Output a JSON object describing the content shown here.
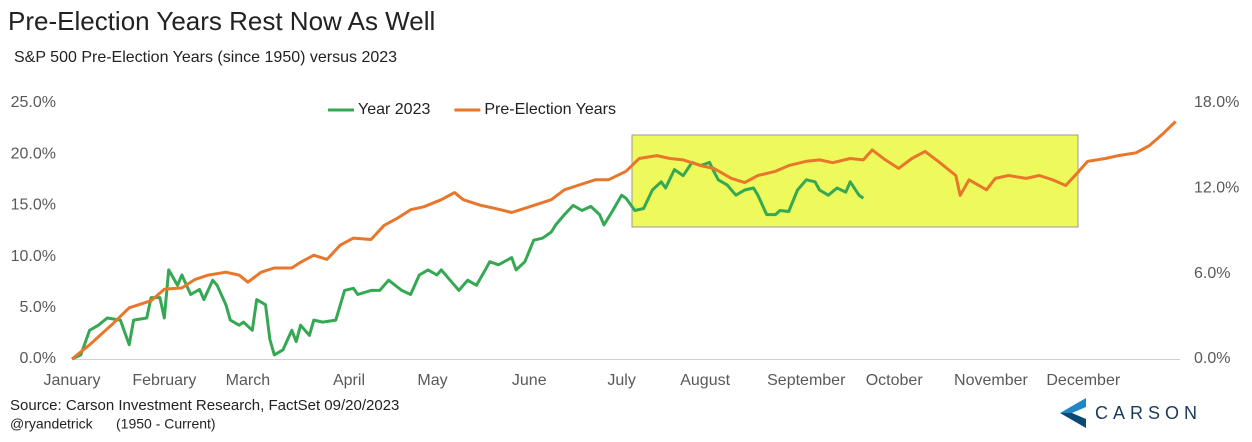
{
  "chart_data": {
    "type": "line",
    "title": "Pre-Election Years Rest Now As Well",
    "subtitle": "S&P 500 Pre-Election Years (since 1950) versus 2023",
    "source": "Source: Carson Investment Research, FactSet 09/20/2023",
    "credit": "@ryandetrick",
    "note": "(1950 - Current)",
    "logo": "CARSON",
    "grid": false,
    "legend": "top",
    "xlim": [
      0,
      252
    ],
    "xticks": [
      {
        "value": 0,
        "label": "January"
      },
      {
        "value": 21,
        "label": "February"
      },
      {
        "value": 40,
        "label": "March"
      },
      {
        "value": 63,
        "label": "April"
      },
      {
        "value": 82,
        "label": "May"
      },
      {
        "value": 104,
        "label": "June"
      },
      {
        "value": 125,
        "label": "July"
      },
      {
        "value": 144,
        "label": "August"
      },
      {
        "value": 167,
        "label": "September"
      },
      {
        "value": 187,
        "label": "October"
      },
      {
        "value": 209,
        "label": "November"
      },
      {
        "value": 230,
        "label": "December"
      }
    ],
    "ylim": [
      0,
      25
    ],
    "yticks": [
      {
        "value": 0,
        "label": "0.0%"
      },
      {
        "value": 5,
        "label": "5.0%"
      },
      {
        "value": 10,
        "label": "10.0%"
      },
      {
        "value": 15,
        "label": "15.0%"
      },
      {
        "value": 20,
        "label": "20.0%"
      },
      {
        "value": 25,
        "label": "25.0%"
      }
    ],
    "y2lim": [
      0,
      18
    ],
    "y2ticks": [
      {
        "value": 0,
        "label": "0.0%"
      },
      {
        "value": 6,
        "label": "6.0%"
      },
      {
        "value": 12,
        "label": "12.0%"
      },
      {
        "value": 18,
        "label": "18.0%"
      }
    ],
    "series": [
      {
        "name": "Year 2023",
        "color": "#35a853",
        "axis": "y",
        "x": [
          0,
          2,
          4,
          6,
          8,
          11,
          13,
          14,
          17,
          18,
          20,
          21,
          22,
          24,
          25,
          27,
          29,
          30,
          32,
          33,
          35,
          36,
          38,
          39,
          41,
          42,
          44,
          45,
          46,
          48,
          50,
          51,
          52,
          54,
          55,
          57,
          60,
          62,
          64,
          65,
          68,
          70,
          72,
          75,
          77,
          79,
          81,
          83,
          84,
          86,
          88,
          90,
          92,
          94,
          95,
          97,
          100,
          101,
          103,
          105,
          107,
          109,
          110,
          112,
          114,
          116,
          118,
          120,
          121,
          123,
          125,
          126,
          128,
          130,
          132,
          134,
          135,
          137,
          139,
          141,
          143,
          145,
          146,
          147,
          149,
          151,
          153,
          155,
          156,
          158,
          160,
          161,
          163,
          165,
          167,
          169,
          170,
          172,
          174,
          176,
          177,
          179,
          180
        ],
        "values": [
          0,
          0.4,
          2.8,
          3.3,
          4.0,
          3.8,
          1.4,
          3.8,
          4.0,
          6.0,
          6.0,
          4.0,
          8.7,
          7.2,
          8.2,
          6.3,
          6.8,
          5.8,
          7.7,
          7.2,
          5.3,
          3.8,
          3.3,
          3.6,
          2.8,
          5.8,
          5.3,
          1.9,
          0.4,
          0.9,
          2.8,
          1.7,
          3.3,
          2.3,
          3.8,
          3.6,
          3.8,
          6.7,
          6.9,
          6.3,
          6.7,
          6.7,
          7.7,
          6.7,
          6.3,
          8.2,
          8.7,
          8.2,
          8.7,
          7.7,
          6.7,
          7.7,
          7.2,
          8.7,
          9.5,
          9.2,
          9.9,
          8.7,
          9.5,
          11.6,
          11.8,
          12.4,
          13.1,
          14.1,
          15.0,
          14.5,
          14.9,
          14.1,
          13.1,
          14.5,
          16.0,
          15.7,
          14.5,
          14.7,
          16.5,
          17.3,
          16.7,
          18.5,
          17.9,
          19.2,
          18.9,
          19.2,
          18.3,
          17.5,
          17.0,
          16.0,
          16.5,
          16.7,
          16.0,
          14.1,
          14.1,
          14.5,
          14.4,
          16.5,
          17.5,
          17.3,
          16.5,
          16.0,
          16.7,
          16.3,
          17.3,
          16.0,
          15.7
        ]
      },
      {
        "name": "Pre-Election Years",
        "color": "#e8762b",
        "axis": "y2",
        "x": [
          0,
          4,
          9,
          13,
          18,
          21,
          25,
          28,
          31,
          35,
          38,
          40,
          43,
          46,
          50,
          52,
          55,
          58,
          61,
          64,
          68,
          71,
          74,
          77,
          80,
          84,
          87,
          89,
          93,
          96,
          100,
          102,
          105,
          109,
          112,
          115,
          119,
          122,
          126,
          129,
          133,
          136,
          139,
          143,
          146,
          150,
          153,
          156,
          160,
          163,
          167,
          170,
          173,
          177,
          180,
          182,
          185,
          188,
          191,
          194,
          197,
          201,
          202,
          204,
          208,
          210,
          213,
          217,
          220,
          223,
          226,
          229,
          231,
          235,
          238,
          242,
          245,
          248,
          251
        ],
        "values": [
          0,
          1.0,
          2.4,
          3.6,
          4.1,
          4.9,
          5.0,
          5.6,
          5.9,
          6.1,
          5.9,
          5.4,
          6.1,
          6.4,
          6.4,
          6.8,
          7.3,
          7.0,
          8.0,
          8.5,
          8.4,
          9.4,
          9.9,
          10.5,
          10.7,
          11.2,
          11.7,
          11.2,
          10.8,
          10.6,
          10.3,
          10.5,
          10.8,
          11.2,
          11.9,
          12.2,
          12.6,
          12.6,
          13.2,
          14.1,
          14.3,
          14.1,
          14.0,
          13.6,
          13.4,
          12.7,
          12.4,
          12.9,
          13.2,
          13.6,
          13.9,
          14.0,
          13.8,
          14.1,
          14.0,
          14.7,
          14.0,
          13.4,
          14.1,
          14.6,
          13.9,
          12.9,
          11.5,
          12.6,
          11.9,
          12.7,
          12.9,
          12.7,
          12.9,
          12.6,
          12.2,
          13.2,
          13.9,
          14.1,
          14.3,
          14.5,
          15.0,
          15.8,
          16.7
        ]
      }
    ]
  }
}
